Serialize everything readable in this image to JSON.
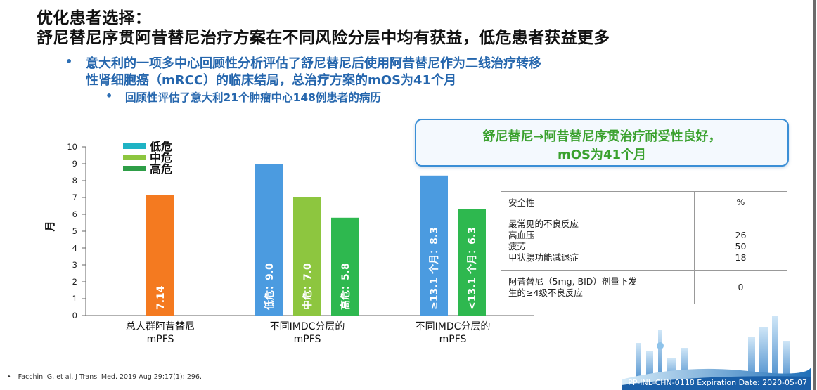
{
  "header": {
    "title_line1": "优化患者选择：",
    "title_line2": "舒尼替尼序贯阿昔替尼治疗方案在不同风险分层中均有获益，低危患者获益更多"
  },
  "bullets": {
    "b1_line1": "意大利的一项多中心回顾性分析评估了舒尼替尼后使用阿昔替尼作为二线治疗转移",
    "b1_line2": "性肾细胞癌（mRCC）的临床结局，总治疗方案的mOS为41个月",
    "b2": "回顾性评估了意大利21个肿瘤中心148例患者的病历",
    "dot": "•"
  },
  "callout": {
    "line1": "舒尼替尼→阿昔替尼序贯治疗耐受性良好，",
    "line2": "mOS为41个月"
  },
  "chart_data": {
    "type": "bar",
    "ylabel": "月",
    "ylim": [
      0,
      10
    ],
    "yticks": [
      "0",
      "1",
      "2",
      "3",
      "4",
      "5",
      "6",
      "7",
      "8",
      "9",
      "10"
    ],
    "legend": {
      "placement": "top-left",
      "entries": [
        {
          "label": "低危",
          "color": "#1fb3c4"
        },
        {
          "label": "中危",
          "color": "#8dc63f"
        },
        {
          "label": "高危",
          "color": "#2e9e47"
        }
      ]
    },
    "groups": [
      {
        "label_line1": "总人群阿昔替尼",
        "label_line2": "mPFS",
        "bars": [
          {
            "value": 7.14,
            "label": "7.14",
            "color": "#f47a20"
          }
        ]
      },
      {
        "label_line1": "不同IMDC分层的",
        "label_line2": "mPFS",
        "bars": [
          {
            "value": 9.0,
            "label": "低危：9.0",
            "color": "#4b9be0"
          },
          {
            "value": 7.0,
            "label": "中危：7.0",
            "color": "#8dc63f"
          },
          {
            "value": 5.8,
            "label": "高危：5.8",
            "color": "#2eb84f"
          }
        ]
      },
      {
        "label_line1": "不同IMDC分层的",
        "label_line2": "mPFS",
        "bars": [
          {
            "value": 8.3,
            "label": "≥13.1 个月：8.3",
            "color": "#4b9be0"
          },
          {
            "value": 6.3,
            "label": "<13.1 个月：6.3",
            "color": "#2eb84f"
          }
        ]
      }
    ]
  },
  "safety_table": {
    "header_col1": "安全性",
    "header_col2": "%",
    "ae_title": "最常见的不良反应",
    "ae_rows": [
      {
        "name": "高血压",
        "value": "26"
      },
      {
        "name": "疲劳",
        "value": "50"
      },
      {
        "name": "甲状腺功能减退症",
        "value": "18"
      }
    ],
    "g4_line1": "阿昔替尼（5mg, BID）剂量下发",
    "g4_line2": "生的≥4级不良反应",
    "g4_value": "0"
  },
  "footer": {
    "dot": "•",
    "reference": "Facchini G, et al. J Transl Med. 2019 Aug 29;17(1): 296.",
    "expiry": "PP-INL-CHN-0118 Expiration Date: 2020-05-07"
  }
}
